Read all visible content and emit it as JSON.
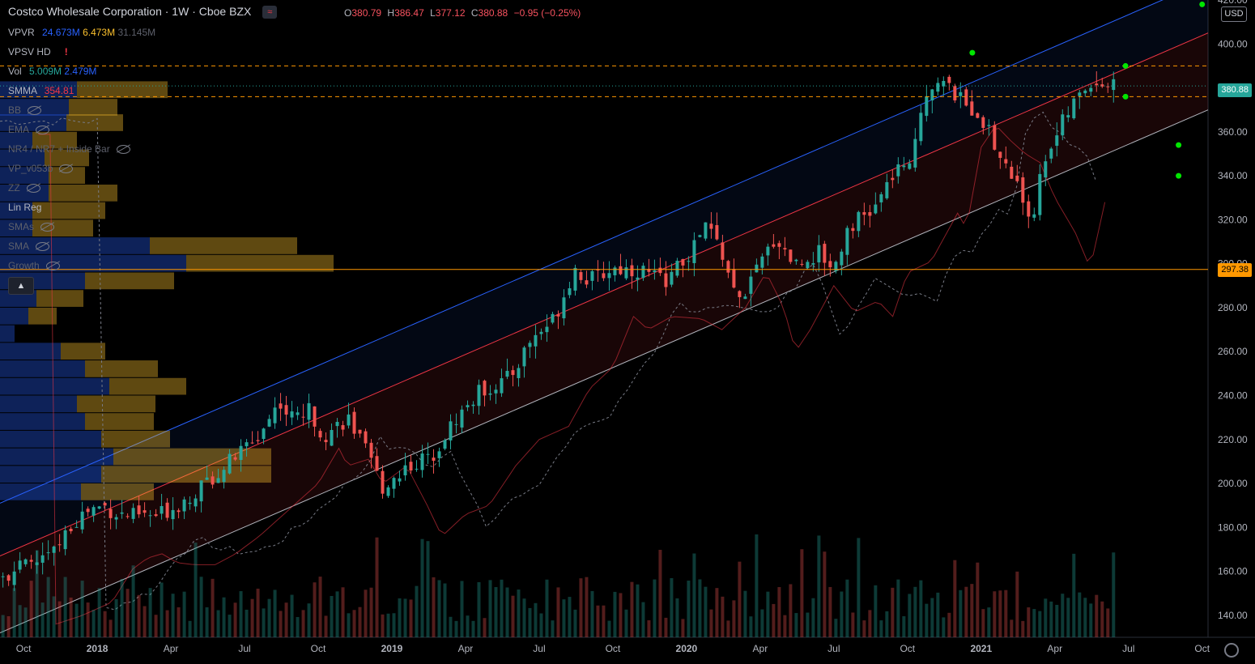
{
  "header": {
    "title": "Costco Wholesale Corporation · 1W · Cboe BZX",
    "compare_icon": "≈",
    "ohlc": {
      "o_label": "O",
      "o": "380.79",
      "h_label": "H",
      "h": "386.47",
      "l_label": "L",
      "l": "377.12",
      "c_label": "C",
      "c": "380.88",
      "chg": "−0.95 (−0.25%)"
    }
  },
  "indicators": {
    "vpvr": {
      "label": "VPVR",
      "v1": "24.673M",
      "v2": "6.473M",
      "v3": "31.145M"
    },
    "vpsv": {
      "label": "VPSV HD",
      "warn": "!"
    },
    "vol": {
      "label": "Vol",
      "v1": "5.009M",
      "v2": "2.479M"
    },
    "smma": {
      "label": "SMMA",
      "value": "354.81"
    },
    "hidden": [
      "BB",
      "EMA",
      "NR4 / NR7 + Inside Bar",
      "VP_v053b",
      "ZZ"
    ],
    "linreg": {
      "label": "Lin Reg"
    },
    "hidden2": [
      "SMAs",
      "SMA",
      "Growth"
    ],
    "collapse_icon": "chevron-up-icon"
  },
  "axis": {
    "currency": "USD",
    "price_tag": "380.88",
    "level_tag": "297.38"
  },
  "colors": {
    "up": "#26a69a",
    "down": "#ef5350",
    "blue_line": "#2962ff",
    "red_line": "#f23645",
    "gray_line": "#b2b5be",
    "level_orange": "#ff9800"
  },
  "chart_data": {
    "type": "candlestick",
    "title": "Costco Wholesale Corporation · 1W · Cboe BZX",
    "ylim": [
      130,
      420
    ],
    "y_ticks": [
      140,
      160,
      180,
      200,
      220,
      240,
      260,
      280,
      300,
      320,
      340,
      360,
      380,
      400,
      420
    ],
    "x_ticks": [
      {
        "label": "Oct",
        "t": 0.0
      },
      {
        "label": "2018",
        "t": 0.25
      },
      {
        "label": "Apr",
        "t": 0.5
      },
      {
        "label": "Jul",
        "t": 0.75
      },
      {
        "label": "Oct",
        "t": 1.0
      },
      {
        "label": "2019",
        "t": 1.25
      },
      {
        "label": "Apr",
        "t": 1.5
      },
      {
        "label": "Jul",
        "t": 1.75
      },
      {
        "label": "Oct",
        "t": 2.0
      },
      {
        "label": "2020",
        "t": 2.25
      },
      {
        "label": "Apr",
        "t": 2.5
      },
      {
        "label": "Jul",
        "t": 2.75
      },
      {
        "label": "Oct",
        "t": 3.0
      },
      {
        "label": "2021",
        "t": 3.25
      },
      {
        "label": "Apr",
        "t": 3.5
      },
      {
        "label": "Jul",
        "t": 3.75
      },
      {
        "label": "Oct",
        "t": 4.0
      }
    ],
    "x_range": [
      -0.08,
      4.02
    ],
    "close_series": [
      {
        "t": -0.09,
        "v": 158
      },
      {
        "t": 0.0,
        "v": 162
      },
      {
        "t": 0.1,
        "v": 168
      },
      {
        "t": 0.17,
        "v": 183
      },
      {
        "t": 0.22,
        "v": 188
      },
      {
        "t": 0.27,
        "v": 190
      },
      {
        "t": 0.32,
        "v": 186
      },
      {
        "t": 0.38,
        "v": 185
      },
      {
        "t": 0.45,
        "v": 185
      },
      {
        "t": 0.52,
        "v": 190
      },
      {
        "t": 0.6,
        "v": 198
      },
      {
        "t": 0.7,
        "v": 210
      },
      {
        "t": 0.8,
        "v": 222
      },
      {
        "t": 0.87,
        "v": 238
      },
      {
        "t": 0.9,
        "v": 230
      },
      {
        "t": 0.97,
        "v": 233
      },
      {
        "t": 1.02,
        "v": 222
      },
      {
        "t": 1.1,
        "v": 230
      },
      {
        "t": 1.17,
        "v": 212
      },
      {
        "t": 1.22,
        "v": 198
      },
      {
        "t": 1.3,
        "v": 208
      },
      {
        "t": 1.38,
        "v": 212
      },
      {
        "t": 1.47,
        "v": 230
      },
      {
        "t": 1.55,
        "v": 242
      },
      {
        "t": 1.65,
        "v": 248
      },
      {
        "t": 1.72,
        "v": 265
      },
      {
        "t": 1.8,
        "v": 275
      },
      {
        "t": 1.87,
        "v": 298
      },
      {
        "t": 1.92,
        "v": 292
      },
      {
        "t": 2.0,
        "v": 298
      },
      {
        "t": 2.1,
        "v": 297
      },
      {
        "t": 2.17,
        "v": 292
      },
      {
        "t": 2.25,
        "v": 302
      },
      {
        "t": 2.32,
        "v": 318
      },
      {
        "t": 2.38,
        "v": 302
      },
      {
        "t": 2.42,
        "v": 282
      },
      {
        "t": 2.47,
        "v": 292
      },
      {
        "t": 2.55,
        "v": 312
      },
      {
        "t": 2.62,
        "v": 300
      },
      {
        "t": 2.7,
        "v": 305
      },
      {
        "t": 2.75,
        "v": 298
      },
      {
        "t": 2.8,
        "v": 318
      },
      {
        "t": 2.88,
        "v": 323
      },
      {
        "t": 2.97,
        "v": 345
      },
      {
        "t": 3.0,
        "v": 338
      },
      {
        "t": 3.05,
        "v": 375
      },
      {
        "t": 3.1,
        "v": 385
      },
      {
        "t": 3.15,
        "v": 378
      },
      {
        "t": 3.2,
        "v": 372
      },
      {
        "t": 3.25,
        "v": 368
      },
      {
        "t": 3.3,
        "v": 352
      },
      {
        "t": 3.37,
        "v": 336
      },
      {
        "t": 3.42,
        "v": 320
      },
      {
        "t": 3.47,
        "v": 350
      },
      {
        "t": 3.55,
        "v": 370
      },
      {
        "t": 3.62,
        "v": 383
      },
      {
        "t": 3.67,
        "v": 382
      },
      {
        "t": 3.7,
        "v": 380.88
      }
    ],
    "regression": {
      "start": {
        "t": -0.08,
        "v": 167
      },
      "end": {
        "t": 4.02,
        "v": 405
      },
      "upper_offset": 24,
      "lower_offset": -35
    },
    "levels": [
      {
        "v": 297.38,
        "style": "solid"
      },
      {
        "v": 390,
        "style": "dashed"
      },
      {
        "v": 376,
        "style": "dashed"
      }
    ],
    "volume_max": 200
  }
}
